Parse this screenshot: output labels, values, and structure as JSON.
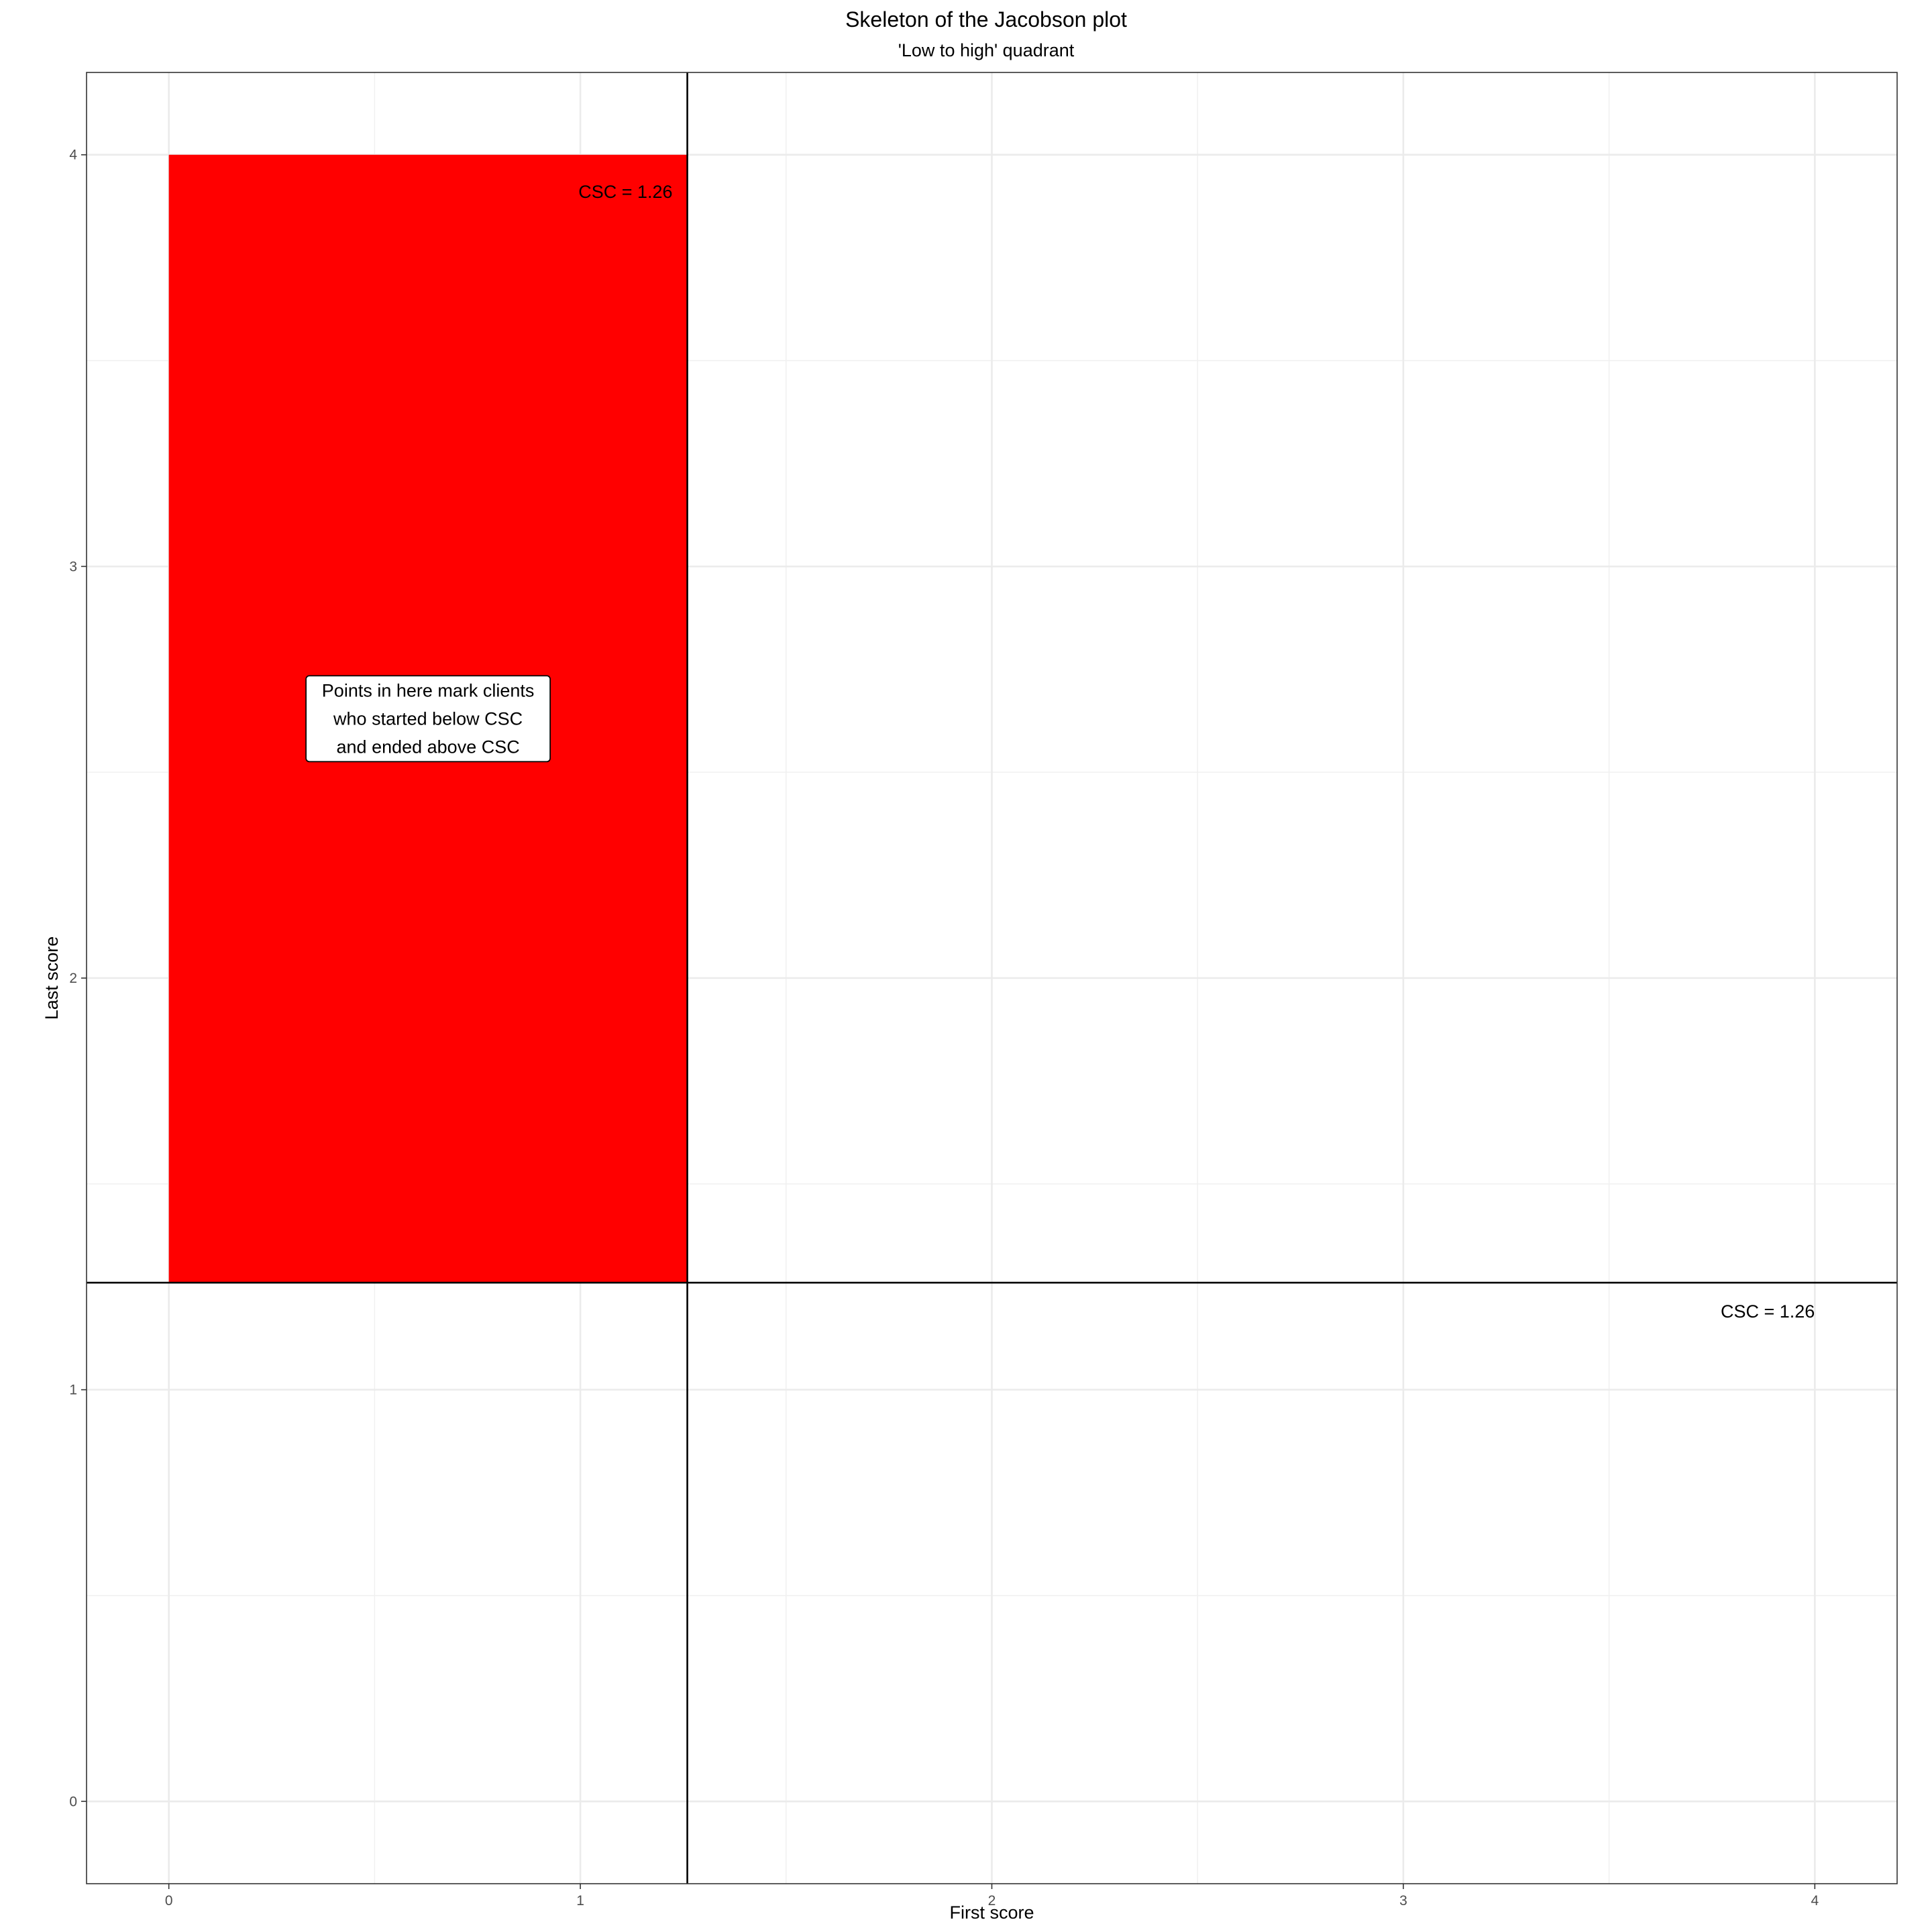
{
  "chart_data": {
    "type": "scatter",
    "title": "Skeleton of the Jacobson plot",
    "subtitle": "'Low to high' quadrant",
    "xlabel": "First score",
    "ylabel": "Last score",
    "xlim": [
      -0.2,
      4.2
    ],
    "ylim": [
      -0.2,
      4.2
    ],
    "x_ticks": [
      0,
      1,
      2,
      3,
      4
    ],
    "y_ticks": [
      0,
      1,
      2,
      3,
      4
    ],
    "x_tick_labels": [
      "0",
      "1",
      "2",
      "3",
      "4"
    ],
    "y_tick_labels": [
      "0",
      "1",
      "2",
      "3",
      "4"
    ],
    "grid": true,
    "csc": 1.26,
    "highlight_region": {
      "x": [
        0,
        1.26
      ],
      "y": [
        1.26,
        4
      ],
      "color": "#ff0000"
    },
    "annotations": [
      {
        "text": "CSC = 1.26",
        "x": 1.26,
        "y": 3.91
      },
      {
        "text": "CSC = 1.26",
        "x": 4,
        "y": 1.19
      }
    ],
    "label_box": {
      "lines": [
        "Points in here mark clients",
        "who started below CSC",
        "and ended above CSC"
      ],
      "x": 0.63,
      "y": 2.63
    },
    "series": []
  }
}
